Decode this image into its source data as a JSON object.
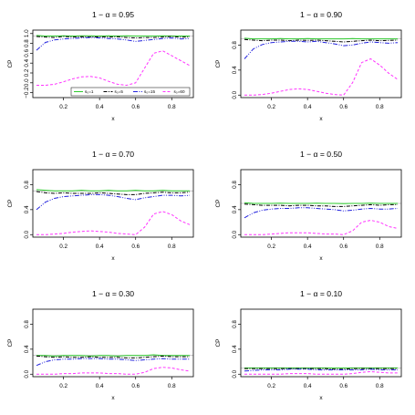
{
  "chart_data": [
    {
      "type": "line",
      "title": "1 − α = 0.95",
      "xlabel": "x",
      "ylabel": "CP",
      "xlim": [
        0.03,
        0.92
      ],
      "ylim": [
        -0.3,
        1.07
      ],
      "xticks": [
        0.2,
        0.4,
        0.6,
        0.8
      ],
      "yticks": [
        -0.2,
        0.0,
        0.2,
        0.4,
        0.6,
        0.8,
        1.0
      ],
      "xtick_labels": [
        "0.2",
        "0.4",
        "0.6",
        "0.8"
      ],
      "ytick_labels": [
        "−0.2",
        "0.0",
        "0.2",
        "0.4",
        "0.6",
        "0.8",
        "1.0"
      ],
      "nominal": 0.95,
      "x": [
        0.05,
        0.1,
        0.15,
        0.2,
        0.25,
        0.3,
        0.35,
        0.4,
        0.45,
        0.5,
        0.55,
        0.6,
        0.65,
        0.7,
        0.75,
        0.8,
        0.85,
        0.9
      ],
      "series": [
        {
          "name": "s₀=1",
          "values": [
            0.96,
            0.95,
            0.95,
            0.955,
            0.95,
            0.955,
            0.955,
            0.95,
            0.955,
            0.95,
            0.955,
            0.95,
            0.95,
            0.95,
            0.955,
            0.95,
            0.95,
            0.95
          ]
        },
        {
          "name": "s₀=5",
          "values": [
            0.94,
            0.93,
            0.92,
            0.94,
            0.93,
            0.935,
            0.93,
            0.935,
            0.93,
            0.935,
            0.92,
            0.91,
            0.92,
            0.92,
            0.93,
            0.94,
            0.925,
            0.93
          ]
        },
        {
          "name": "s₀=15",
          "values": [
            0.66,
            0.82,
            0.87,
            0.89,
            0.9,
            0.91,
            0.92,
            0.91,
            0.9,
            0.89,
            0.87,
            0.84,
            0.86,
            0.88,
            0.9,
            0.91,
            0.89,
            0.9
          ]
        },
        {
          "name": "s₀=60",
          "values": [
            -0.05,
            -0.05,
            -0.03,
            0.02,
            0.08,
            0.12,
            0.13,
            0.1,
            0.03,
            -0.03,
            -0.05,
            0.0,
            0.3,
            0.6,
            0.65,
            0.55,
            0.45,
            0.35
          ]
        }
      ],
      "legend": {
        "position": "bottom",
        "entries": [
          "s₀=1",
          "s₀=5",
          "s₀=15",
          "s₀=60"
        ]
      }
    },
    {
      "type": "line",
      "title": "1 − α = 0.90",
      "xlabel": "x",
      "ylabel": "CP",
      "xlim": [
        0.03,
        0.92
      ],
      "ylim": [
        -0.04,
        1.04
      ],
      "xticks": [
        0.2,
        0.4,
        0.6,
        0.8
      ],
      "yticks": [
        0.0,
        0.4,
        0.8
      ],
      "xtick_labels": [
        "0.2",
        "0.4",
        "0.6",
        "0.8"
      ],
      "ytick_labels": [
        "0.0",
        "0.4",
        "0.8"
      ],
      "nominal": 0.9,
      "x": [
        0.05,
        0.1,
        0.15,
        0.2,
        0.25,
        0.3,
        0.35,
        0.4,
        0.45,
        0.5,
        0.55,
        0.6,
        0.65,
        0.7,
        0.75,
        0.8,
        0.85,
        0.9
      ],
      "series": [
        {
          "name": "s₀=1",
          "values": [
            0.91,
            0.9,
            0.9,
            0.9,
            0.905,
            0.9,
            0.9,
            0.905,
            0.9,
            0.9,
            0.9,
            0.9,
            0.905,
            0.9,
            0.9,
            0.9,
            0.9,
            0.9
          ]
        },
        {
          "name": "s₀=5",
          "values": [
            0.89,
            0.88,
            0.87,
            0.88,
            0.88,
            0.87,
            0.88,
            0.875,
            0.88,
            0.87,
            0.86,
            0.85,
            0.86,
            0.87,
            0.88,
            0.87,
            0.875,
            0.88
          ]
        },
        {
          "name": "s₀=15",
          "values": [
            0.58,
            0.74,
            0.81,
            0.84,
            0.85,
            0.86,
            0.86,
            0.85,
            0.86,
            0.84,
            0.82,
            0.79,
            0.8,
            0.83,
            0.85,
            0.84,
            0.83,
            0.84
          ]
        },
        {
          "name": "s₀=60",
          "values": [
            0.0,
            0.0,
            0.01,
            0.03,
            0.06,
            0.09,
            0.1,
            0.09,
            0.06,
            0.03,
            0.01,
            0.0,
            0.2,
            0.52,
            0.58,
            0.48,
            0.35,
            0.25
          ]
        }
      ]
    },
    {
      "type": "line",
      "title": "1 − α = 0.70",
      "xlabel": "x",
      "ylabel": "CP",
      "xlim": [
        0.03,
        0.92
      ],
      "ylim": [
        -0.04,
        1.04
      ],
      "xticks": [
        0.2,
        0.4,
        0.6,
        0.8
      ],
      "yticks": [
        0.0,
        0.4,
        0.8
      ],
      "xtick_labels": [
        "0.2",
        "0.4",
        "0.6",
        "0.8"
      ],
      "ytick_labels": [
        "0.0",
        "0.4",
        "0.8"
      ],
      "nominal": 0.7,
      "x": [
        0.05,
        0.1,
        0.15,
        0.2,
        0.25,
        0.3,
        0.35,
        0.4,
        0.45,
        0.5,
        0.55,
        0.6,
        0.65,
        0.7,
        0.75,
        0.8,
        0.85,
        0.9
      ],
      "series": [
        {
          "name": "s₀=1",
          "values": [
            0.72,
            0.71,
            0.7,
            0.7,
            0.7,
            0.71,
            0.7,
            0.7,
            0.71,
            0.7,
            0.7,
            0.71,
            0.7,
            0.7,
            0.71,
            0.7,
            0.7,
            0.7
          ]
        },
        {
          "name": "s₀=5",
          "values": [
            0.69,
            0.67,
            0.66,
            0.67,
            0.66,
            0.66,
            0.66,
            0.67,
            0.66,
            0.65,
            0.64,
            0.64,
            0.66,
            0.67,
            0.68,
            0.67,
            0.67,
            0.68
          ]
        },
        {
          "name": "s₀=15",
          "values": [
            0.4,
            0.52,
            0.58,
            0.61,
            0.62,
            0.63,
            0.64,
            0.64,
            0.63,
            0.61,
            0.58,
            0.56,
            0.59,
            0.61,
            0.63,
            0.63,
            0.62,
            0.63
          ]
        },
        {
          "name": "s₀=60",
          "values": [
            0.0,
            0.0,
            0.01,
            0.02,
            0.04,
            0.05,
            0.06,
            0.05,
            0.04,
            0.02,
            0.01,
            0.0,
            0.12,
            0.33,
            0.37,
            0.32,
            0.22,
            0.16
          ]
        }
      ]
    },
    {
      "type": "line",
      "title": "1 − α = 0.50",
      "xlabel": "x",
      "ylabel": "CP",
      "xlim": [
        0.03,
        0.92
      ],
      "ylim": [
        -0.04,
        1.04
      ],
      "xticks": [
        0.2,
        0.4,
        0.6,
        0.8
      ],
      "yticks": [
        0.0,
        0.4,
        0.8
      ],
      "xtick_labels": [
        "0.2",
        "0.4",
        "0.6",
        "0.8"
      ],
      "ytick_labels": [
        "0.0",
        "0.4",
        "0.8"
      ],
      "nominal": 0.5,
      "x": [
        0.05,
        0.1,
        0.15,
        0.2,
        0.25,
        0.3,
        0.35,
        0.4,
        0.45,
        0.5,
        0.55,
        0.6,
        0.65,
        0.7,
        0.75,
        0.8,
        0.85,
        0.9
      ],
      "series": [
        {
          "name": "s₀=1",
          "values": [
            0.51,
            0.5,
            0.5,
            0.5,
            0.505,
            0.5,
            0.5,
            0.5,
            0.505,
            0.5,
            0.5,
            0.495,
            0.5,
            0.5,
            0.505,
            0.5,
            0.5,
            0.5
          ]
        },
        {
          "name": "s₀=5",
          "values": [
            0.49,
            0.48,
            0.47,
            0.47,
            0.47,
            0.46,
            0.47,
            0.47,
            0.46,
            0.46,
            0.45,
            0.45,
            0.46,
            0.47,
            0.48,
            0.47,
            0.48,
            0.48
          ]
        },
        {
          "name": "s₀=15",
          "values": [
            0.27,
            0.35,
            0.39,
            0.41,
            0.42,
            0.42,
            0.43,
            0.43,
            0.42,
            0.41,
            0.4,
            0.38,
            0.39,
            0.41,
            0.42,
            0.41,
            0.41,
            0.42
          ]
        },
        {
          "name": "s₀=60",
          "values": [
            0.0,
            0.0,
            0.0,
            0.01,
            0.02,
            0.03,
            0.03,
            0.03,
            0.02,
            0.01,
            0.01,
            0.0,
            0.06,
            0.2,
            0.23,
            0.2,
            0.13,
            0.1
          ]
        }
      ]
    },
    {
      "type": "line",
      "title": "1 − α = 0.30",
      "xlabel": "x",
      "ylabel": "CP",
      "xlim": [
        0.03,
        0.92
      ],
      "ylim": [
        -0.04,
        1.04
      ],
      "xticks": [
        0.2,
        0.4,
        0.6,
        0.8
      ],
      "yticks": [
        0.0,
        0.4,
        0.8
      ],
      "xtick_labels": [
        "0.2",
        "0.4",
        "0.6",
        "0.8"
      ],
      "ytick_labels": [
        "0.0",
        "0.4",
        "0.8"
      ],
      "nominal": 0.3,
      "x": [
        0.05,
        0.1,
        0.15,
        0.2,
        0.25,
        0.3,
        0.35,
        0.4,
        0.45,
        0.5,
        0.55,
        0.6,
        0.65,
        0.7,
        0.75,
        0.8,
        0.85,
        0.9
      ],
      "series": [
        {
          "name": "s₀=1",
          "values": [
            0.3,
            0.3,
            0.29,
            0.3,
            0.3,
            0.3,
            0.29,
            0.3,
            0.3,
            0.29,
            0.3,
            0.3,
            0.3,
            0.31,
            0.3,
            0.3,
            0.3,
            0.3
          ]
        },
        {
          "name": "s₀=5",
          "values": [
            0.29,
            0.28,
            0.27,
            0.28,
            0.27,
            0.27,
            0.28,
            0.27,
            0.27,
            0.27,
            0.26,
            0.26,
            0.27,
            0.28,
            0.29,
            0.28,
            0.28,
            0.28
          ]
        },
        {
          "name": "s₀=15",
          "values": [
            0.14,
            0.2,
            0.23,
            0.24,
            0.24,
            0.25,
            0.25,
            0.25,
            0.24,
            0.24,
            0.23,
            0.22,
            0.23,
            0.24,
            0.25,
            0.24,
            0.24,
            0.24
          ]
        },
        {
          "name": "s₀=60",
          "values": [
            0.0,
            0.0,
            0.0,
            0.01,
            0.01,
            0.02,
            0.02,
            0.02,
            0.01,
            0.01,
            0.0,
            0.0,
            0.03,
            0.09,
            0.11,
            0.1,
            0.07,
            0.05
          ]
        }
      ]
    },
    {
      "type": "line",
      "title": "1 − α = 0.10",
      "xlabel": "x",
      "ylabel": "CP",
      "xlim": [
        0.03,
        0.92
      ],
      "ylim": [
        -0.04,
        1.04
      ],
      "xticks": [
        0.2,
        0.4,
        0.6,
        0.8
      ],
      "yticks": [
        0.0,
        0.4,
        0.8
      ],
      "xtick_labels": [
        "0.2",
        "0.4",
        "0.6",
        "0.8"
      ],
      "ytick_labels": [
        "0.0",
        "0.4",
        "0.8"
      ],
      "nominal": 0.1,
      "x": [
        0.05,
        0.1,
        0.15,
        0.2,
        0.25,
        0.3,
        0.35,
        0.4,
        0.45,
        0.5,
        0.55,
        0.6,
        0.65,
        0.7,
        0.75,
        0.8,
        0.85,
        0.9
      ],
      "series": [
        {
          "name": "s₀=1",
          "values": [
            0.1,
            0.1,
            0.1,
            0.1,
            0.1,
            0.1,
            0.1,
            0.1,
            0.1,
            0.1,
            0.1,
            0.1,
            0.1,
            0.1,
            0.1,
            0.1,
            0.1,
            0.1
          ]
        },
        {
          "name": "s₀=5",
          "values": [
            0.09,
            0.09,
            0.09,
            0.09,
            0.09,
            0.09,
            0.09,
            0.09,
            0.09,
            0.09,
            0.08,
            0.08,
            0.09,
            0.09,
            0.09,
            0.09,
            0.09,
            0.09
          ]
        },
        {
          "name": "s₀=15",
          "values": [
            0.05,
            0.06,
            0.07,
            0.07,
            0.07,
            0.08,
            0.08,
            0.08,
            0.07,
            0.07,
            0.07,
            0.07,
            0.07,
            0.07,
            0.08,
            0.07,
            0.07,
            0.07
          ]
        },
        {
          "name": "s₀=60",
          "values": [
            0.0,
            0.0,
            0.0,
            0.0,
            0.0,
            0.01,
            0.01,
            0.01,
            0.0,
            0.0,
            0.0,
            0.0,
            0.01,
            0.03,
            0.04,
            0.03,
            0.02,
            0.02
          ]
        }
      ]
    }
  ],
  "series_style": [
    {
      "color": "#2ecc2e",
      "dash": ""
    },
    {
      "color": "#000000",
      "dash": "4,1.5,1,1.5"
    },
    {
      "color": "#2222dd",
      "dash": "5,1.5,1,1.5,1,1.5"
    },
    {
      "color": "#ff33ff",
      "dash": "3,2"
    }
  ],
  "nominal_color": "#bbbbbb",
  "axis_color": "#000000"
}
